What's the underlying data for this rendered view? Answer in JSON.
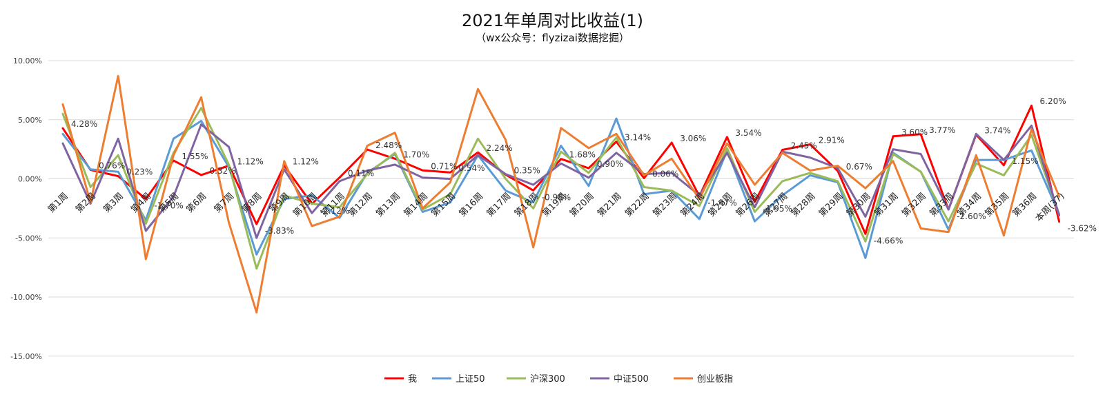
{
  "chart_data": {
    "type": "line",
    "title": "2021年单周对比收益(1)",
    "subtitle": "（wx公众号：flyzizai数据挖掘）",
    "xlabel": "",
    "ylabel": "",
    "ylim": [
      -15,
      10
    ],
    "yticks": [
      "10.00%",
      "5.00%",
      "0.00%",
      "-5.00%",
      "-10.00%",
      "-15.00%"
    ],
    "grid": true,
    "legend_position": "bottom",
    "categories": [
      "第1周",
      "第2周",
      "第3周",
      "第4周",
      "第5周",
      "第6周",
      "第7周",
      "第8周",
      "第9周",
      "第10周",
      "第11周",
      "第12周",
      "第13周",
      "第14周",
      "第15周",
      "第16周",
      "第17周",
      "第18周",
      "第19周",
      "第20周",
      "第21周",
      "第22周",
      "第23周",
      "第24周",
      "第25周",
      "第26周",
      "第27周",
      "第28周",
      "第29周",
      "第30周",
      "第31周",
      "第32周",
      "第33周",
      "第34周",
      "第35周",
      "第36周",
      "本周(37)"
    ],
    "series": [
      {
        "name": "我",
        "color": "#ff0000",
        "values": [
          4.28,
          0.76,
          0.23,
          -1.7,
          1.55,
          0.32,
          1.12,
          -3.83,
          1.12,
          -2.12,
          0.11,
          2.48,
          1.7,
          0.71,
          0.54,
          2.24,
          0.35,
          -0.98,
          1.68,
          0.9,
          3.14,
          0.06,
          3.06,
          -1.47,
          3.54,
          -1.95,
          2.45,
          2.91,
          0.67,
          -4.66,
          3.6,
          3.77,
          -2.6,
          3.74,
          1.15,
          6.2,
          -3.62
        ]
      },
      {
        "name": "上证50",
        "color": "#5b9bd5",
        "values": [
          3.8,
          0.8,
          0.6,
          -3.5,
          3.4,
          4.9,
          1.0,
          -6.4,
          -1.7,
          -1.4,
          -3.3,
          0.5,
          2.1,
          -2.8,
          -2.0,
          2.0,
          -1.0,
          -2.0,
          2.8,
          -0.6,
          5.1,
          -1.3,
          -1.0,
          -3.4,
          2.4,
          -3.6,
          -1.4,
          0.3,
          -0.3,
          -6.7,
          2.2,
          0.6,
          -4.3,
          1.6,
          1.6,
          2.4,
          -3.0
        ]
      },
      {
        "name": "沪深300",
        "color": "#9bbb59",
        "values": [
          5.5,
          -0.7,
          2.0,
          -3.8,
          2.2,
          6.0,
          1.2,
          -7.6,
          -1.4,
          -2.1,
          -2.4,
          0.4,
          2.2,
          -2.6,
          -1.3,
          3.4,
          0.0,
          -2.5,
          2.3,
          0.5,
          3.5,
          -0.7,
          -1.0,
          -2.3,
          2.6,
          -2.8,
          -0.2,
          0.5,
          -0.2,
          -5.3,
          2.1,
          0.6,
          -3.6,
          1.3,
          0.3,
          3.7,
          -3.0
        ]
      },
      {
        "name": "中证500",
        "color": "#8064a2",
        "values": [
          3.0,
          -2.1,
          3.4,
          -4.4,
          -1.5,
          4.6,
          2.7,
          -5.0,
          0.8,
          -2.9,
          -0.2,
          0.7,
          1.2,
          0.1,
          0.0,
          2.0,
          0.4,
          -0.5,
          1.3,
          0.1,
          2.2,
          0.4,
          0.5,
          -1.4,
          2.2,
          -2.4,
          2.3,
          1.8,
          0.9,
          -3.2,
          2.5,
          2.1,
          -2.6,
          3.8,
          1.6,
          4.5,
          -3.1
        ]
      },
      {
        "name": "创业板指",
        "color": "#ed7d31",
        "values": [
          6.3,
          -2.0,
          8.7,
          -6.8,
          2.0,
          6.9,
          -3.7,
          -11.3,
          1.5,
          -4.0,
          -3.2,
          2.8,
          3.9,
          -2.5,
          -0.3,
          7.6,
          3.3,
          -5.8,
          4.3,
          2.6,
          3.8,
          0.3,
          1.7,
          -1.7,
          3.0,
          -0.5,
          2.2,
          0.7,
          1.1,
          -0.8,
          1.5,
          -4.2,
          -4.5,
          2.0,
          -4.8,
          4.2,
          -1.5
        ]
      }
    ],
    "data_labels": [
      "4.28%",
      "0.76%",
      "0.23%",
      "-1.70%",
      "1.55%",
      "0.32%",
      "1.12%",
      "-3.83%",
      "1.12%",
      "-2.12%",
      "0.11%",
      "2.48%",
      "1.70%",
      "0.71%",
      "0.54%",
      "2.24%",
      "0.35%",
      "-0.98%",
      "1.68%",
      "0.90%",
      "3.14%",
      "0.06%",
      "3.06%",
      "-1.47%",
      "3.54%",
      "-1.95%",
      "2.45%",
      "2.91%",
      "0.67%",
      "-4.66%",
      "3.60%",
      "3.77%",
      "-2.60%",
      "3.74%",
      "1.15%",
      "6.20%",
      "-3.62%"
    ]
  }
}
